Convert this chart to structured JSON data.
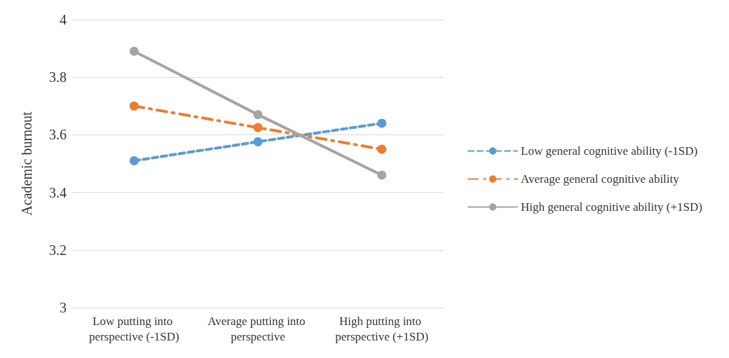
{
  "chart_data": {
    "type": "line",
    "ylabel": "Academic burnout",
    "categories": [
      "Low putting into perspective (-1SD)",
      "Average putting into perspective",
      "High putting into perspective (+1SD)"
    ],
    "series": [
      {
        "name": "Low general cognitive ability (-1SD)",
        "color": "#5b9bd5",
        "line_style": "dashed",
        "values": [
          3.51,
          3.576,
          3.64
        ]
      },
      {
        "name": "Average general cognitive ability",
        "color": "#ed7d31",
        "line_style": "dashed",
        "values": [
          3.7,
          3.625,
          3.55
        ]
      },
      {
        "name": "High general cognitive ability (+1SD)",
        "color": "#a5a5a5",
        "line_style": "solid",
        "values": [
          3.89,
          3.67,
          3.46
        ]
      }
    ],
    "ylim": [
      3,
      4
    ],
    "yticks": [
      3,
      3.2,
      3.4,
      3.6,
      3.8,
      4
    ],
    "grid": "y",
    "legend": "right",
    "marker": "circle"
  }
}
